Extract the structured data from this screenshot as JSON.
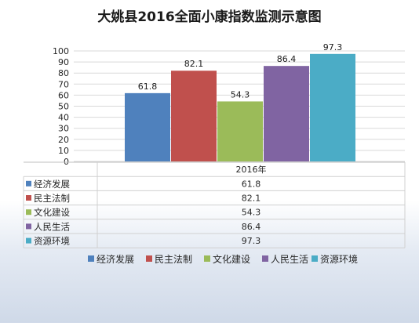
{
  "chart_data": {
    "type": "bar",
    "title": "大姚县2016全面小康指数监测示意图",
    "categories": [
      "2016年"
    ],
    "series": [
      {
        "name": "经济发展",
        "color": "#4f81bd",
        "values": [
          61.8
        ]
      },
      {
        "name": "民主法制",
        "color": "#c0504d",
        "values": [
          82.1
        ]
      },
      {
        "name": "文化建设",
        "color": "#9bbb59",
        "values": [
          54.3
        ]
      },
      {
        "name": "人民生活",
        "color": "#8064a2",
        "values": [
          86.4
        ]
      },
      {
        "name": "资源环境",
        "color": "#4bacc6",
        "values": [
          97.3
        ]
      }
    ],
    "ylim": [
      0,
      100
    ],
    "yticks": [
      0,
      10,
      20,
      30,
      40,
      50,
      60,
      70,
      80,
      90,
      100
    ],
    "data_labels": [
      "61.8",
      "82.1",
      "54.3",
      "86.4",
      "97.3"
    ],
    "grid": true,
    "legend": "bottom",
    "data_table": true
  }
}
